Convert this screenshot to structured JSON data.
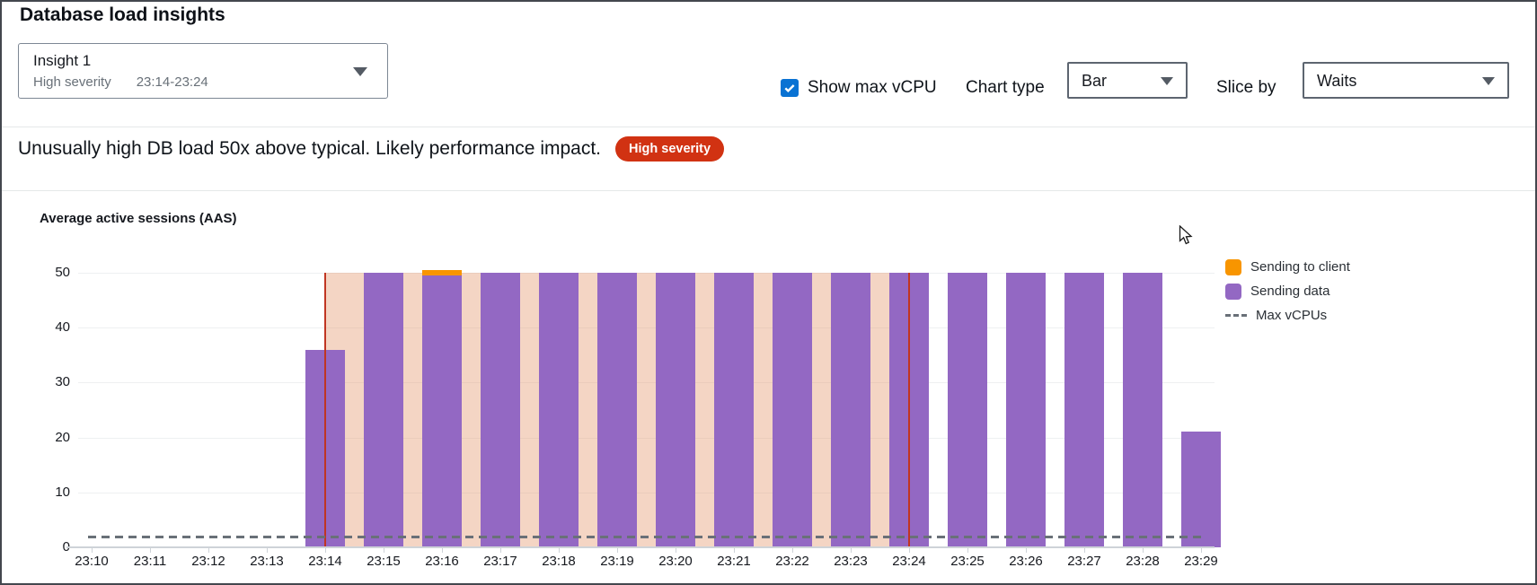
{
  "header": {
    "title": "Database load insights"
  },
  "insight_selector": {
    "name": "Insight 1",
    "severity": "High severity",
    "time_range": "23:14-23:24"
  },
  "controls": {
    "show_max_vcpu": {
      "label": "Show max vCPU",
      "checked": true,
      "accent_color": "#0972d3"
    },
    "chart_type": {
      "label": "Chart type",
      "value": "Bar"
    },
    "slice_by": {
      "label": "Slice by",
      "value": "Waits"
    }
  },
  "alert": {
    "message": "Unusually high DB load 50x above typical. Likely performance impact.",
    "badge": "High severity",
    "badge_color": "#d13212"
  },
  "chart_data": {
    "type": "bar",
    "title": "Average active sessions (AAS)",
    "stacked": true,
    "grid": "horizontal",
    "legend_position": "right",
    "categories": [
      "23:10",
      "23:11",
      "23:12",
      "23:13",
      "23:14",
      "23:15",
      "23:16",
      "23:17",
      "23:18",
      "23:19",
      "23:20",
      "23:21",
      "23:22",
      "23:23",
      "23:24",
      "23:25",
      "23:26",
      "23:27",
      "23:28",
      "23:29"
    ],
    "series": [
      {
        "name": "Sending to client",
        "color": "#f89500",
        "values": [
          null,
          null,
          null,
          null,
          0,
          0,
          1,
          0,
          0,
          0,
          0,
          0,
          0,
          0,
          0,
          0,
          0,
          0,
          0,
          0
        ]
      },
      {
        "name": "Sending data",
        "color": "#9368c3",
        "values": [
          null,
          null,
          null,
          null,
          36,
          50,
          49.5,
          50,
          50,
          50,
          50,
          50,
          50,
          50,
          50,
          50,
          50,
          50,
          50,
          21
        ]
      }
    ],
    "ylim": [
      0,
      50
    ],
    "yticks": [
      0,
      10,
      20,
      30,
      40,
      50
    ],
    "max_vcpus": {
      "label": "Max vCPUs",
      "value": 2,
      "style": "dashed",
      "color": "#697078"
    },
    "anomaly_window": {
      "start": "23:14",
      "end": "23:24",
      "fill": "#e59a73",
      "line_color": "#c03522"
    }
  }
}
